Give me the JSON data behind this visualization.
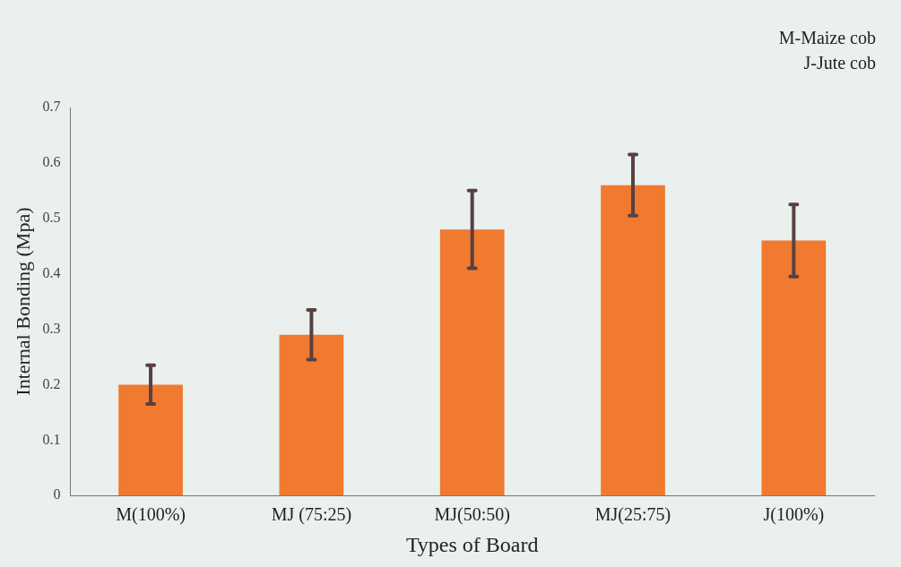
{
  "chart_data": {
    "type": "bar",
    "xlabel": "Types of Board",
    "ylabel": "Internal Bonding (Mpa)",
    "categories": [
      "M(100%)",
      "MJ (75:25)",
      "MJ(50:50)",
      "MJ(25:75)",
      "J(100%)"
    ],
    "values": [
      0.2,
      0.29,
      0.48,
      0.56,
      0.46
    ],
    "errors": [
      0.035,
      0.045,
      0.07,
      0.055,
      0.065
    ],
    "color": "#f07a30",
    "ylim": [
      0,
      0.7
    ],
    "yticks": [
      0,
      0.1,
      0.2,
      0.3,
      0.4,
      0.5,
      0.6,
      0.7
    ],
    "grid": false,
    "legend": false,
    "annotations": [
      "M-Maize cob",
      "J-Jute cob"
    ]
  }
}
